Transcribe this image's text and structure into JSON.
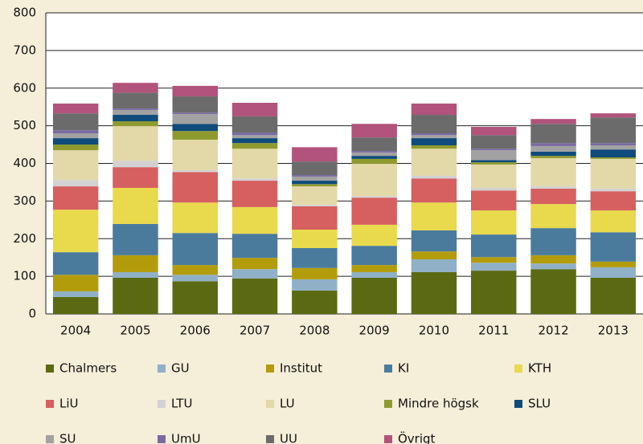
{
  "chart_data": {
    "type": "stacked_bar",
    "categories": [
      "2004",
      "2005",
      "2006",
      "2007",
      "2008",
      "2009",
      "2010",
      "2011",
      "2012",
      "2013"
    ],
    "ylim": [
      0,
      800
    ],
    "yticks": [
      0,
      100,
      200,
      300,
      400,
      500,
      600,
      700,
      800
    ],
    "grid": true,
    "series": [
      {
        "name": "Chalmers",
        "color": "#5b6a12",
        "values": [
          45,
          96,
          87,
          94,
          62,
          96,
          111,
          115,
          119,
          96
        ]
      },
      {
        "name": "GU",
        "color": "#8fb0c6",
        "values": [
          15,
          15,
          17,
          25,
          30,
          15,
          34,
          21,
          15,
          28
        ]
      },
      {
        "name": "Institut",
        "color": "#b39c0c",
        "values": [
          44,
          45,
          26,
          30,
          30,
          19,
          21,
          15,
          22,
          15
        ]
      },
      {
        "name": "KI",
        "color": "#4a7b9d",
        "values": [
          60,
          83,
          85,
          64,
          53,
          51,
          56,
          60,
          72,
          78
        ]
      },
      {
        "name": "KTH",
        "color": "#e9d94c",
        "values": [
          113,
          96,
          81,
          71,
          49,
          56,
          74,
          64,
          64,
          58
        ]
      },
      {
        "name": "LiU",
        "color": "#d65f5f",
        "values": [
          62,
          55,
          81,
          70,
          62,
          72,
          64,
          53,
          41,
          51
        ]
      },
      {
        "name": "LTU",
        "color": "#d2d2d2",
        "values": [
          17,
          17,
          5,
          6,
          4,
          4,
          7,
          7,
          6,
          7
        ]
      },
      {
        "name": "LU",
        "color": "#e3d8a8",
        "values": [
          79,
          92,
          81,
          79,
          49,
          86,
          72,
          62,
          75,
          79
        ]
      },
      {
        "name": "Mindre högsk",
        "color": "#8f9a2e",
        "values": [
          15,
          13,
          23,
          15,
          6,
          13,
          9,
          6,
          6,
          4
        ]
      },
      {
        "name": "SLU",
        "color": "#0f4b7b",
        "values": [
          17,
          17,
          19,
          13,
          9,
          8,
          19,
          6,
          11,
          21
        ]
      },
      {
        "name": "SU",
        "color": "#a2a2a2",
        "values": [
          13,
          13,
          26,
          8,
          11,
          9,
          8,
          26,
          15,
          11
        ]
      },
      {
        "name": "UmU",
        "color": "#7a6aa2",
        "values": [
          8,
          4,
          4,
          7,
          4,
          4,
          5,
          4,
          8,
          6
        ]
      },
      {
        "name": "UU",
        "color": "#6b6b6b",
        "values": [
          45,
          42,
          43,
          43,
          36,
          36,
          49,
          36,
          51,
          68
        ]
      },
      {
        "name": "Övrigt",
        "color": "#b1537b",
        "values": [
          26,
          26,
          28,
          36,
          38,
          36,
          30,
          22,
          13,
          11
        ]
      }
    ]
  }
}
